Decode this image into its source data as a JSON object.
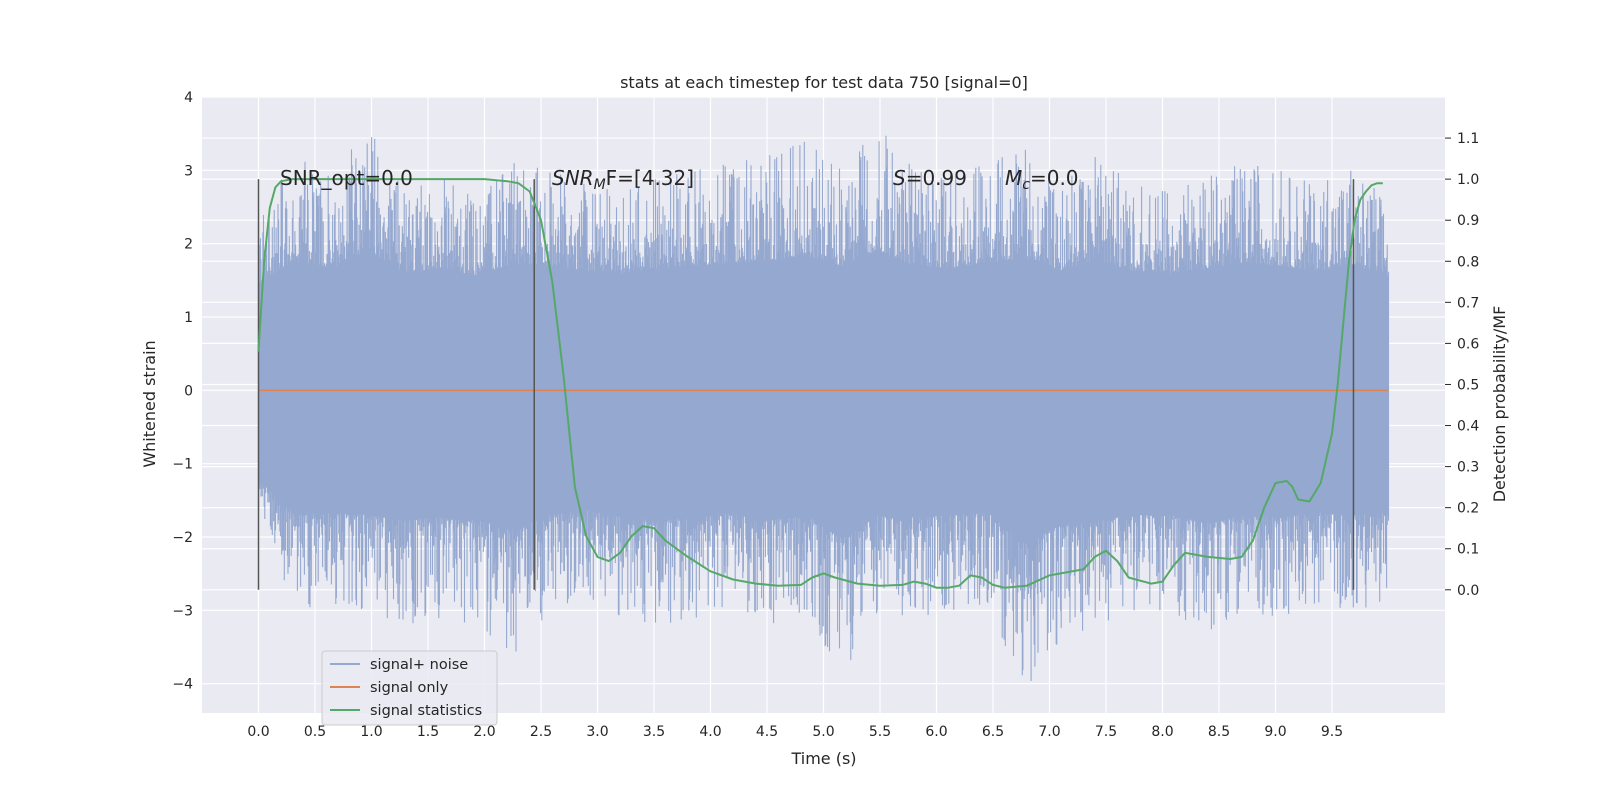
{
  "chart_data": {
    "type": "line",
    "title": "stats at each timestep for test data 750 [signal=0]",
    "xlabel": "Time (s)",
    "ylabel": "Whitened strain",
    "y2label": "Detection probability/MF",
    "xlim": [
      -0.5,
      10.5
    ],
    "ylim": [
      -4.4,
      4.0
    ],
    "y2lim": [
      -0.3,
      1.2
    ],
    "grid": true,
    "x_ticks": [
      "0.0",
      "0.5",
      "1.0",
      "1.5",
      "2.0",
      "2.5",
      "3.0",
      "3.5",
      "4.0",
      "4.5",
      "5.0",
      "5.5",
      "6.0",
      "6.5",
      "7.0",
      "7.5",
      "8.0",
      "8.5",
      "9.0",
      "9.5"
    ],
    "y_ticks": [
      "4",
      "3",
      "2",
      "1",
      "0",
      "−1",
      "−2",
      "−3",
      "−4"
    ],
    "y2_ticks": [
      "1.1",
      "1.0",
      "0.9",
      "0.8",
      "0.7",
      "0.6",
      "0.5",
      "0.4",
      "0.3",
      "0.2",
      "0.1",
      "0.0"
    ],
    "annotations": {
      "snr_opt": "SNR_opt=0.0",
      "snr_mf_main": "SNR",
      "snr_mf_sub": "M",
      "snr_mf_rest": "F=[4.32]",
      "s_main": "S",
      "s_rest": "=0.99",
      "mc_main": "M",
      "mc_sub": "c",
      "mc_rest": "=0.0"
    },
    "vertical_markers": [
      0.0,
      2.44,
      9.69
    ],
    "series": [
      {
        "name": "signal+ noise",
        "color": "#95a8cf",
        "kind": "noise",
        "x_range": [
          0.0,
          10.0
        ],
        "envelope": [
          2.3,
          3.2,
          2.9,
          3.6,
          2.7,
          2.9,
          2.6,
          3.1,
          3.0,
          2.8,
          2.7,
          2.9,
          3.0,
          3.1,
          3.2,
          3.4,
          3.0,
          3.6,
          3.0,
          2.9,
          3.1,
          3.3,
          2.8,
          3.2,
          2.8,
          2.7,
          2.9,
          3.1,
          3.0,
          2.8,
          3.0,
          2.6
        ],
        "envelope_low": [
          -1.6,
          -3.0,
          -2.9,
          -3.0,
          -3.2,
          -3.1,
          -3.2,
          -3.6,
          -3.0,
          -2.8,
          -3.1,
          -3.2,
          -3.1,
          -2.9,
          -3.2,
          -3.0,
          -3.9,
          -3.0,
          -3.1,
          -3.0,
          -2.9,
          -4.1,
          -3.4,
          -3.2,
          -3.0,
          -3.0,
          -3.3,
          -3.0,
          -3.1,
          -2.9,
          -3.0,
          -2.9
        ]
      },
      {
        "name": "signal only",
        "color": "#dd8452",
        "x": [
          0.0,
          10.0
        ],
        "y": [
          0.0,
          0.0
        ]
      },
      {
        "name": "signal statistics",
        "color": "#55a868",
        "axis": "y2",
        "x": [
          0.0,
          0.05,
          0.1,
          0.15,
          0.2,
          0.3,
          0.5,
          1.0,
          1.5,
          2.0,
          2.2,
          2.3,
          2.4,
          2.5,
          2.6,
          2.7,
          2.8,
          2.9,
          3.0,
          3.1,
          3.2,
          3.3,
          3.4,
          3.5,
          3.6,
          3.8,
          4.0,
          4.2,
          4.4,
          4.6,
          4.8,
          4.9,
          5.0,
          5.1,
          5.3,
          5.5,
          5.7,
          5.8,
          5.9,
          6.0,
          6.1,
          6.2,
          6.3,
          6.4,
          6.5,
          6.6,
          6.8,
          7.0,
          7.1,
          7.3,
          7.4,
          7.5,
          7.6,
          7.7,
          7.9,
          8.0,
          8.1,
          8.2,
          8.3,
          8.4,
          8.6,
          8.7,
          8.8,
          8.9,
          9.0,
          9.1,
          9.15,
          9.2,
          9.3,
          9.4,
          9.5,
          9.55,
          9.6,
          9.65,
          9.7,
          9.75,
          9.8,
          9.85,
          9.9,
          9.95
        ],
        "y": [
          0.58,
          0.8,
          0.93,
          0.98,
          0.995,
          1.0,
          1.0,
          1.0,
          1.0,
          1.0,
          0.995,
          0.99,
          0.97,
          0.9,
          0.75,
          0.52,
          0.25,
          0.13,
          0.08,
          0.07,
          0.09,
          0.13,
          0.155,
          0.15,
          0.12,
          0.08,
          0.045,
          0.025,
          0.015,
          0.01,
          0.012,
          0.03,
          0.04,
          0.03,
          0.015,
          0.01,
          0.012,
          0.02,
          0.015,
          0.005,
          0.005,
          0.01,
          0.035,
          0.03,
          0.012,
          0.005,
          0.01,
          0.035,
          0.04,
          0.05,
          0.08,
          0.095,
          0.07,
          0.03,
          0.015,
          0.02,
          0.06,
          0.09,
          0.085,
          0.08,
          0.075,
          0.08,
          0.12,
          0.2,
          0.26,
          0.265,
          0.25,
          0.22,
          0.215,
          0.26,
          0.38,
          0.5,
          0.65,
          0.8,
          0.9,
          0.95,
          0.97,
          0.985,
          0.99,
          0.99
        ]
      }
    ],
    "legend": {
      "position": "lower-left"
    }
  }
}
